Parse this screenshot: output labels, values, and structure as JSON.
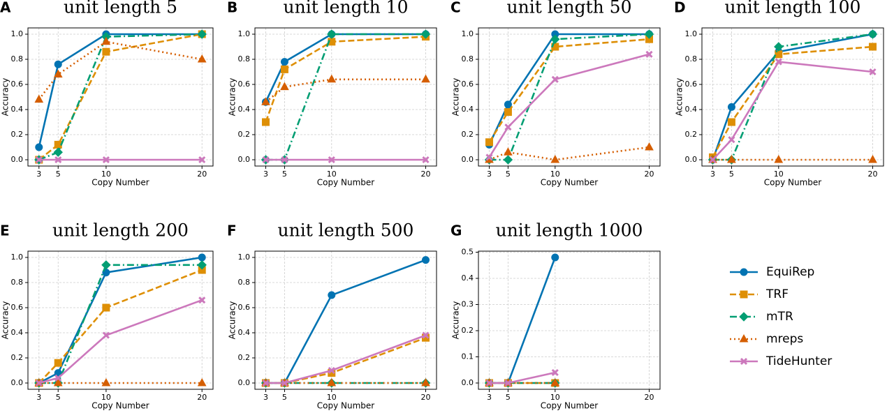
{
  "chart_data": [
    {
      "type": "line",
      "label": "A",
      "title": "unit length 5",
      "xlabel": "Copy Number",
      "ylabel": "Accuracy",
      "grid": true,
      "x": [
        3,
        5,
        10,
        20
      ],
      "xlim": [
        1.85,
        21.15
      ],
      "xticks": [
        3,
        5,
        10,
        20
      ],
      "ylim": [
        -0.05,
        1.05
      ],
      "yticks": [
        {
          "value": 0,
          "label": "0.0"
        },
        0.2,
        0.4,
        0.6,
        0.8,
        {
          "value": 1,
          "label": "1.0"
        }
      ],
      "series": [
        {
          "name": "EquiRep",
          "color": "#0173b2",
          "linestyle": "solid",
          "marker": "circle",
          "values": [
            0.1,
            0.76,
            1.0,
            1.0
          ]
        },
        {
          "name": "TRF",
          "color": "#de8f05",
          "linestyle": "dashed",
          "marker": "square",
          "values": [
            0,
            0.12,
            0.86,
            1.0
          ]
        },
        {
          "name": "mTR",
          "color": "#029e73",
          "linestyle": "dashdot",
          "marker": "diamond",
          "values": [
            0,
            0.06,
            0.98,
            1.0
          ]
        },
        {
          "name": "mreps",
          "color": "#d55e00",
          "linestyle": "dotted",
          "marker": "triangle",
          "values": [
            0.48,
            0.68,
            0.94,
            0.8
          ]
        },
        {
          "name": "TideHunter",
          "color": "#cc78bc",
          "linestyle": "solid",
          "marker": "x",
          "values": [
            0,
            0,
            0,
            0
          ]
        }
      ]
    },
    {
      "type": "line",
      "label": "B",
      "title": "unit length 10",
      "xlabel": "Copy Number",
      "ylabel": "Accuracy",
      "grid": true,
      "x": [
        3,
        5,
        10,
        20
      ],
      "xlim": [
        1.85,
        21.15
      ],
      "xticks": [
        3,
        5,
        10,
        20
      ],
      "ylim": [
        -0.05,
        1.05
      ],
      "yticks": [
        {
          "value": 0,
          "label": "0.0"
        },
        0.2,
        0.4,
        0.6,
        0.8,
        {
          "value": 1,
          "label": "1.0"
        }
      ],
      "series": [
        {
          "name": "EquiRep",
          "color": "#0173b2",
          "linestyle": "solid",
          "marker": "circle",
          "values": [
            0.46,
            0.78,
            1.0,
            1.0
          ]
        },
        {
          "name": "TRF",
          "color": "#de8f05",
          "linestyle": "dashed",
          "marker": "square",
          "values": [
            0.3,
            0.72,
            0.94,
            0.98
          ]
        },
        {
          "name": "mTR",
          "color": "#029e73",
          "linestyle": "dashdot",
          "marker": "diamond",
          "values": [
            0,
            0,
            1.0,
            1.0
          ]
        },
        {
          "name": "mreps",
          "color": "#d55e00",
          "linestyle": "dotted",
          "marker": "triangle",
          "values": [
            0.46,
            0.58,
            0.64,
            0.64
          ]
        },
        {
          "name": "TideHunter",
          "color": "#cc78bc",
          "linestyle": "solid",
          "marker": "x",
          "values": [
            0,
            0,
            0,
            0
          ]
        }
      ]
    },
    {
      "type": "line",
      "label": "C",
      "title": "unit length 50",
      "xlabel": "Copy Number",
      "ylabel": "Accuracy",
      "grid": true,
      "x": [
        3,
        5,
        10,
        20
      ],
      "xlim": [
        1.85,
        21.15
      ],
      "xticks": [
        3,
        5,
        10,
        20
      ],
      "ylim": [
        -0.05,
        1.05
      ],
      "yticks": [
        {
          "value": 0,
          "label": "0.0"
        },
        0.2,
        0.4,
        0.6,
        0.8,
        {
          "value": 1,
          "label": "1.0"
        }
      ],
      "series": [
        {
          "name": "EquiRep",
          "color": "#0173b2",
          "linestyle": "solid",
          "marker": "circle",
          "values": [
            0.12,
            0.44,
            1.0,
            1.0
          ]
        },
        {
          "name": "TRF",
          "color": "#de8f05",
          "linestyle": "dashed",
          "marker": "square",
          "values": [
            0.14,
            0.38,
            0.9,
            0.96
          ]
        },
        {
          "name": "mTR",
          "color": "#029e73",
          "linestyle": "dashdot",
          "marker": "diamond",
          "values": [
            0,
            0,
            0.96,
            1.0
          ]
        },
        {
          "name": "mreps",
          "color": "#d55e00",
          "linestyle": "dotted",
          "marker": "triangle",
          "values": [
            0,
            0.06,
            0,
            0.1
          ]
        },
        {
          "name": "TideHunter",
          "color": "#cc78bc",
          "linestyle": "solid",
          "marker": "x",
          "values": [
            0.02,
            0.26,
            0.64,
            0.84
          ]
        }
      ]
    },
    {
      "type": "line",
      "label": "D",
      "title": "unit length 100",
      "xlabel": "Copy Number",
      "ylabel": "Accuracy",
      "grid": true,
      "x": [
        3,
        5,
        10,
        20
      ],
      "xlim": [
        1.85,
        21.15
      ],
      "xticks": [
        3,
        5,
        10,
        20
      ],
      "ylim": [
        -0.05,
        1.05
      ],
      "yticks": [
        {
          "value": 0,
          "label": "0.0"
        },
        0.2,
        0.4,
        0.6,
        0.8,
        {
          "value": 1,
          "label": "1.0"
        }
      ],
      "series": [
        {
          "name": "EquiRep",
          "color": "#0173b2",
          "linestyle": "solid",
          "marker": "circle",
          "values": [
            0,
            0.42,
            0.86,
            1.0
          ]
        },
        {
          "name": "TRF",
          "color": "#de8f05",
          "linestyle": "dashed",
          "marker": "square",
          "values": [
            0.02,
            0.3,
            0.84,
            0.9
          ]
        },
        {
          "name": "mTR",
          "color": "#029e73",
          "linestyle": "dashdot",
          "marker": "diamond",
          "values": [
            0,
            0,
            0.9,
            1.0
          ]
        },
        {
          "name": "mreps",
          "color": "#d55e00",
          "linestyle": "dotted",
          "marker": "triangle",
          "values": [
            0,
            0,
            0,
            0
          ]
        },
        {
          "name": "TideHunter",
          "color": "#cc78bc",
          "linestyle": "solid",
          "marker": "x",
          "values": [
            0,
            0.16,
            0.78,
            0.7
          ]
        }
      ]
    },
    {
      "type": "line",
      "label": "E",
      "title": "unit length 200",
      "xlabel": "Copy Number",
      "ylabel": "Accuracy",
      "grid": true,
      "x": [
        3,
        5,
        10,
        20
      ],
      "xlim": [
        1.85,
        21.15
      ],
      "xticks": [
        3,
        5,
        10,
        20
      ],
      "ylim": [
        -0.05,
        1.05
      ],
      "yticks": [
        {
          "value": 0,
          "label": "0.0"
        },
        0.2,
        0.4,
        0.6,
        0.8,
        {
          "value": 1,
          "label": "1.0"
        }
      ],
      "series": [
        {
          "name": "EquiRep",
          "color": "#0173b2",
          "linestyle": "solid",
          "marker": "circle",
          "values": [
            0,
            0.08,
            0.88,
            1.0
          ]
        },
        {
          "name": "TRF",
          "color": "#de8f05",
          "linestyle": "dashed",
          "marker": "square",
          "values": [
            0,
            0.16,
            0.6,
            0.9
          ]
        },
        {
          "name": "mTR",
          "color": "#029e73",
          "linestyle": "dashdot",
          "marker": "diamond",
          "values": [
            0,
            0,
            0.94,
            0.94
          ]
        },
        {
          "name": "mreps",
          "color": "#d55e00",
          "linestyle": "dotted",
          "marker": "triangle",
          "values": [
            0,
            0,
            0,
            0
          ]
        },
        {
          "name": "TideHunter",
          "color": "#cc78bc",
          "linestyle": "solid",
          "marker": "x",
          "values": [
            0,
            0.04,
            0.38,
            0.66
          ]
        }
      ]
    },
    {
      "type": "line",
      "label": "F",
      "title": "unit length 500",
      "xlabel": "Copy Number",
      "ylabel": "Accuracy",
      "grid": true,
      "x": [
        3,
        5,
        10,
        20
      ],
      "xlim": [
        1.85,
        21.15
      ],
      "xticks": [
        3,
        5,
        10,
        20
      ],
      "ylim": [
        -0.05,
        1.05
      ],
      "yticks": [
        {
          "value": 0,
          "label": "0.0"
        },
        0.2,
        0.4,
        0.6,
        0.8,
        {
          "value": 1,
          "label": "1.0"
        }
      ],
      "series": [
        {
          "name": "EquiRep",
          "color": "#0173b2",
          "linestyle": "solid",
          "marker": "circle",
          "values": [
            0,
            0,
            0.7,
            0.98
          ]
        },
        {
          "name": "TRF",
          "color": "#de8f05",
          "linestyle": "dashed",
          "marker": "square",
          "values": [
            0,
            0,
            0.08,
            0.36
          ]
        },
        {
          "name": "mTR",
          "color": "#029e73",
          "linestyle": "dashdot",
          "marker": "diamond",
          "values": [
            0,
            0,
            0,
            0
          ]
        },
        {
          "name": "mreps",
          "color": "#d55e00",
          "linestyle": "dotted",
          "marker": "triangle",
          "values": [
            0,
            0,
            0,
            0
          ]
        },
        {
          "name": "TideHunter",
          "color": "#cc78bc",
          "linestyle": "solid",
          "marker": "x",
          "values": [
            0,
            0,
            0.1,
            0.38
          ]
        }
      ]
    },
    {
      "type": "line",
      "label": "G",
      "title": "unit length 1000",
      "xlabel": "Copy Number",
      "ylabel": "Accuracy",
      "grid": true,
      "x": [
        3,
        5,
        10,
        20
      ],
      "xlim": [
        1.85,
        21.15
      ],
      "xticks": [
        3,
        5,
        10,
        20
      ],
      "ylim": [
        -0.024,
        0.504
      ],
      "yticks": [
        {
          "value": 0,
          "label": "0.0"
        },
        0.1,
        0.2,
        0.3,
        0.4,
        0.5
      ],
      "series": [
        {
          "name": "EquiRep",
          "color": "#0173b2",
          "linestyle": "solid",
          "marker": "circle",
          "values": [
            0,
            0,
            0.48,
            null
          ]
        },
        {
          "name": "TRF",
          "color": "#de8f05",
          "linestyle": "dashed",
          "marker": "square",
          "values": [
            0,
            0,
            0,
            null
          ]
        },
        {
          "name": "mTR",
          "color": "#029e73",
          "linestyle": "dashdot",
          "marker": "diamond",
          "values": [
            0,
            0,
            0,
            null
          ]
        },
        {
          "name": "mreps",
          "color": "#d55e00",
          "linestyle": "dotted",
          "marker": "triangle",
          "values": [
            0,
            0,
            0,
            null
          ]
        },
        {
          "name": "TideHunter",
          "color": "#cc78bc",
          "linestyle": "solid",
          "marker": "x",
          "values": [
            0,
            0,
            0.04,
            null
          ]
        }
      ]
    }
  ]
}
